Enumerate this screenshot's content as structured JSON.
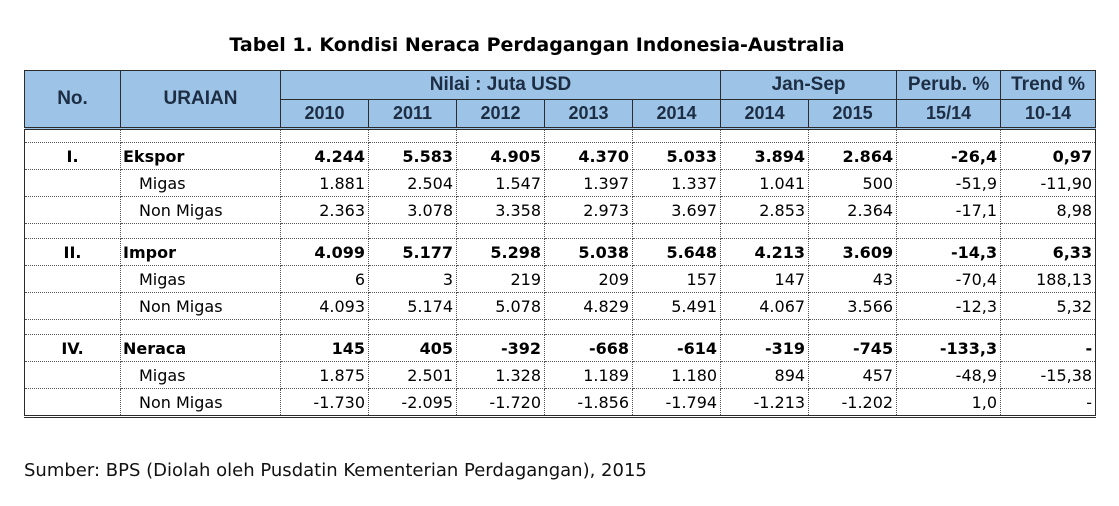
{
  "title": "Tabel 1. Kondisi Neraca Perdagangan Indonesia-Australia",
  "header": {
    "no": "No.",
    "uraian": "URAIAN",
    "nilai": "Nilai : Juta USD",
    "jansep": "Jan-Sep",
    "perub": "Perub. %",
    "trend": "Trend %",
    "years": [
      "2010",
      "2011",
      "2012",
      "2013",
      "2014"
    ],
    "jansep_years": [
      "2014",
      "2015"
    ],
    "perub_sub": "15/14",
    "trend_sub": "10-14"
  },
  "rows": [
    {
      "type": "main",
      "no": "I.",
      "label": "Ekspor",
      "values": [
        "4.244",
        "5.583",
        "4.905",
        "4.370",
        "5.033",
        "3.894",
        "2.864",
        "-26,4",
        "0,97"
      ]
    },
    {
      "type": "sub",
      "no": "",
      "label": "Migas",
      "values": [
        "1.881",
        "2.504",
        "1.547",
        "1.397",
        "1.337",
        "1.041",
        "500",
        "-51,9",
        "-11,90"
      ]
    },
    {
      "type": "sub",
      "no": "",
      "label": "Non Migas",
      "values": [
        "2.363",
        "3.078",
        "3.358",
        "2.973",
        "3.697",
        "2.853",
        "2.364",
        "-17,1",
        "8,98"
      ]
    },
    {
      "type": "main",
      "no": "II.",
      "label": "Impor",
      "values": [
        "4.099",
        "5.177",
        "5.298",
        "5.038",
        "5.648",
        "4.213",
        "3.609",
        "-14,3",
        "6,33"
      ]
    },
    {
      "type": "sub",
      "no": "",
      "label": "Migas",
      "values": [
        "6",
        "3",
        "219",
        "209",
        "157",
        "147",
        "43",
        "-70,4",
        "188,13"
      ]
    },
    {
      "type": "sub",
      "no": "",
      "label": "Non Migas",
      "values": [
        "4.093",
        "5.174",
        "5.078",
        "4.829",
        "5.491",
        "4.067",
        "3.566",
        "-12,3",
        "5,32"
      ]
    },
    {
      "type": "main",
      "no": "IV.",
      "label": "Neraca",
      "values": [
        "145",
        "405",
        "-392",
        "-668",
        "-614",
        "-319",
        "-745",
        "-133,3",
        "-"
      ]
    },
    {
      "type": "sub",
      "no": "",
      "label": "Migas",
      "values": [
        "1.875",
        "2.501",
        "1.328",
        "1.189",
        "1.180",
        "894",
        "457",
        "-48,9",
        "-15,38"
      ]
    },
    {
      "type": "sub",
      "no": "",
      "label": "Non Migas",
      "values": [
        "-1.730",
        "-2.095",
        "-1.720",
        "-1.856",
        "-1.794",
        "-1.213",
        "-1.202",
        "1,0",
        "-"
      ]
    }
  ],
  "source": "Sumber: BPS (Diolah oleh Pusdatin Kementerian Perdagangan), 2015"
}
